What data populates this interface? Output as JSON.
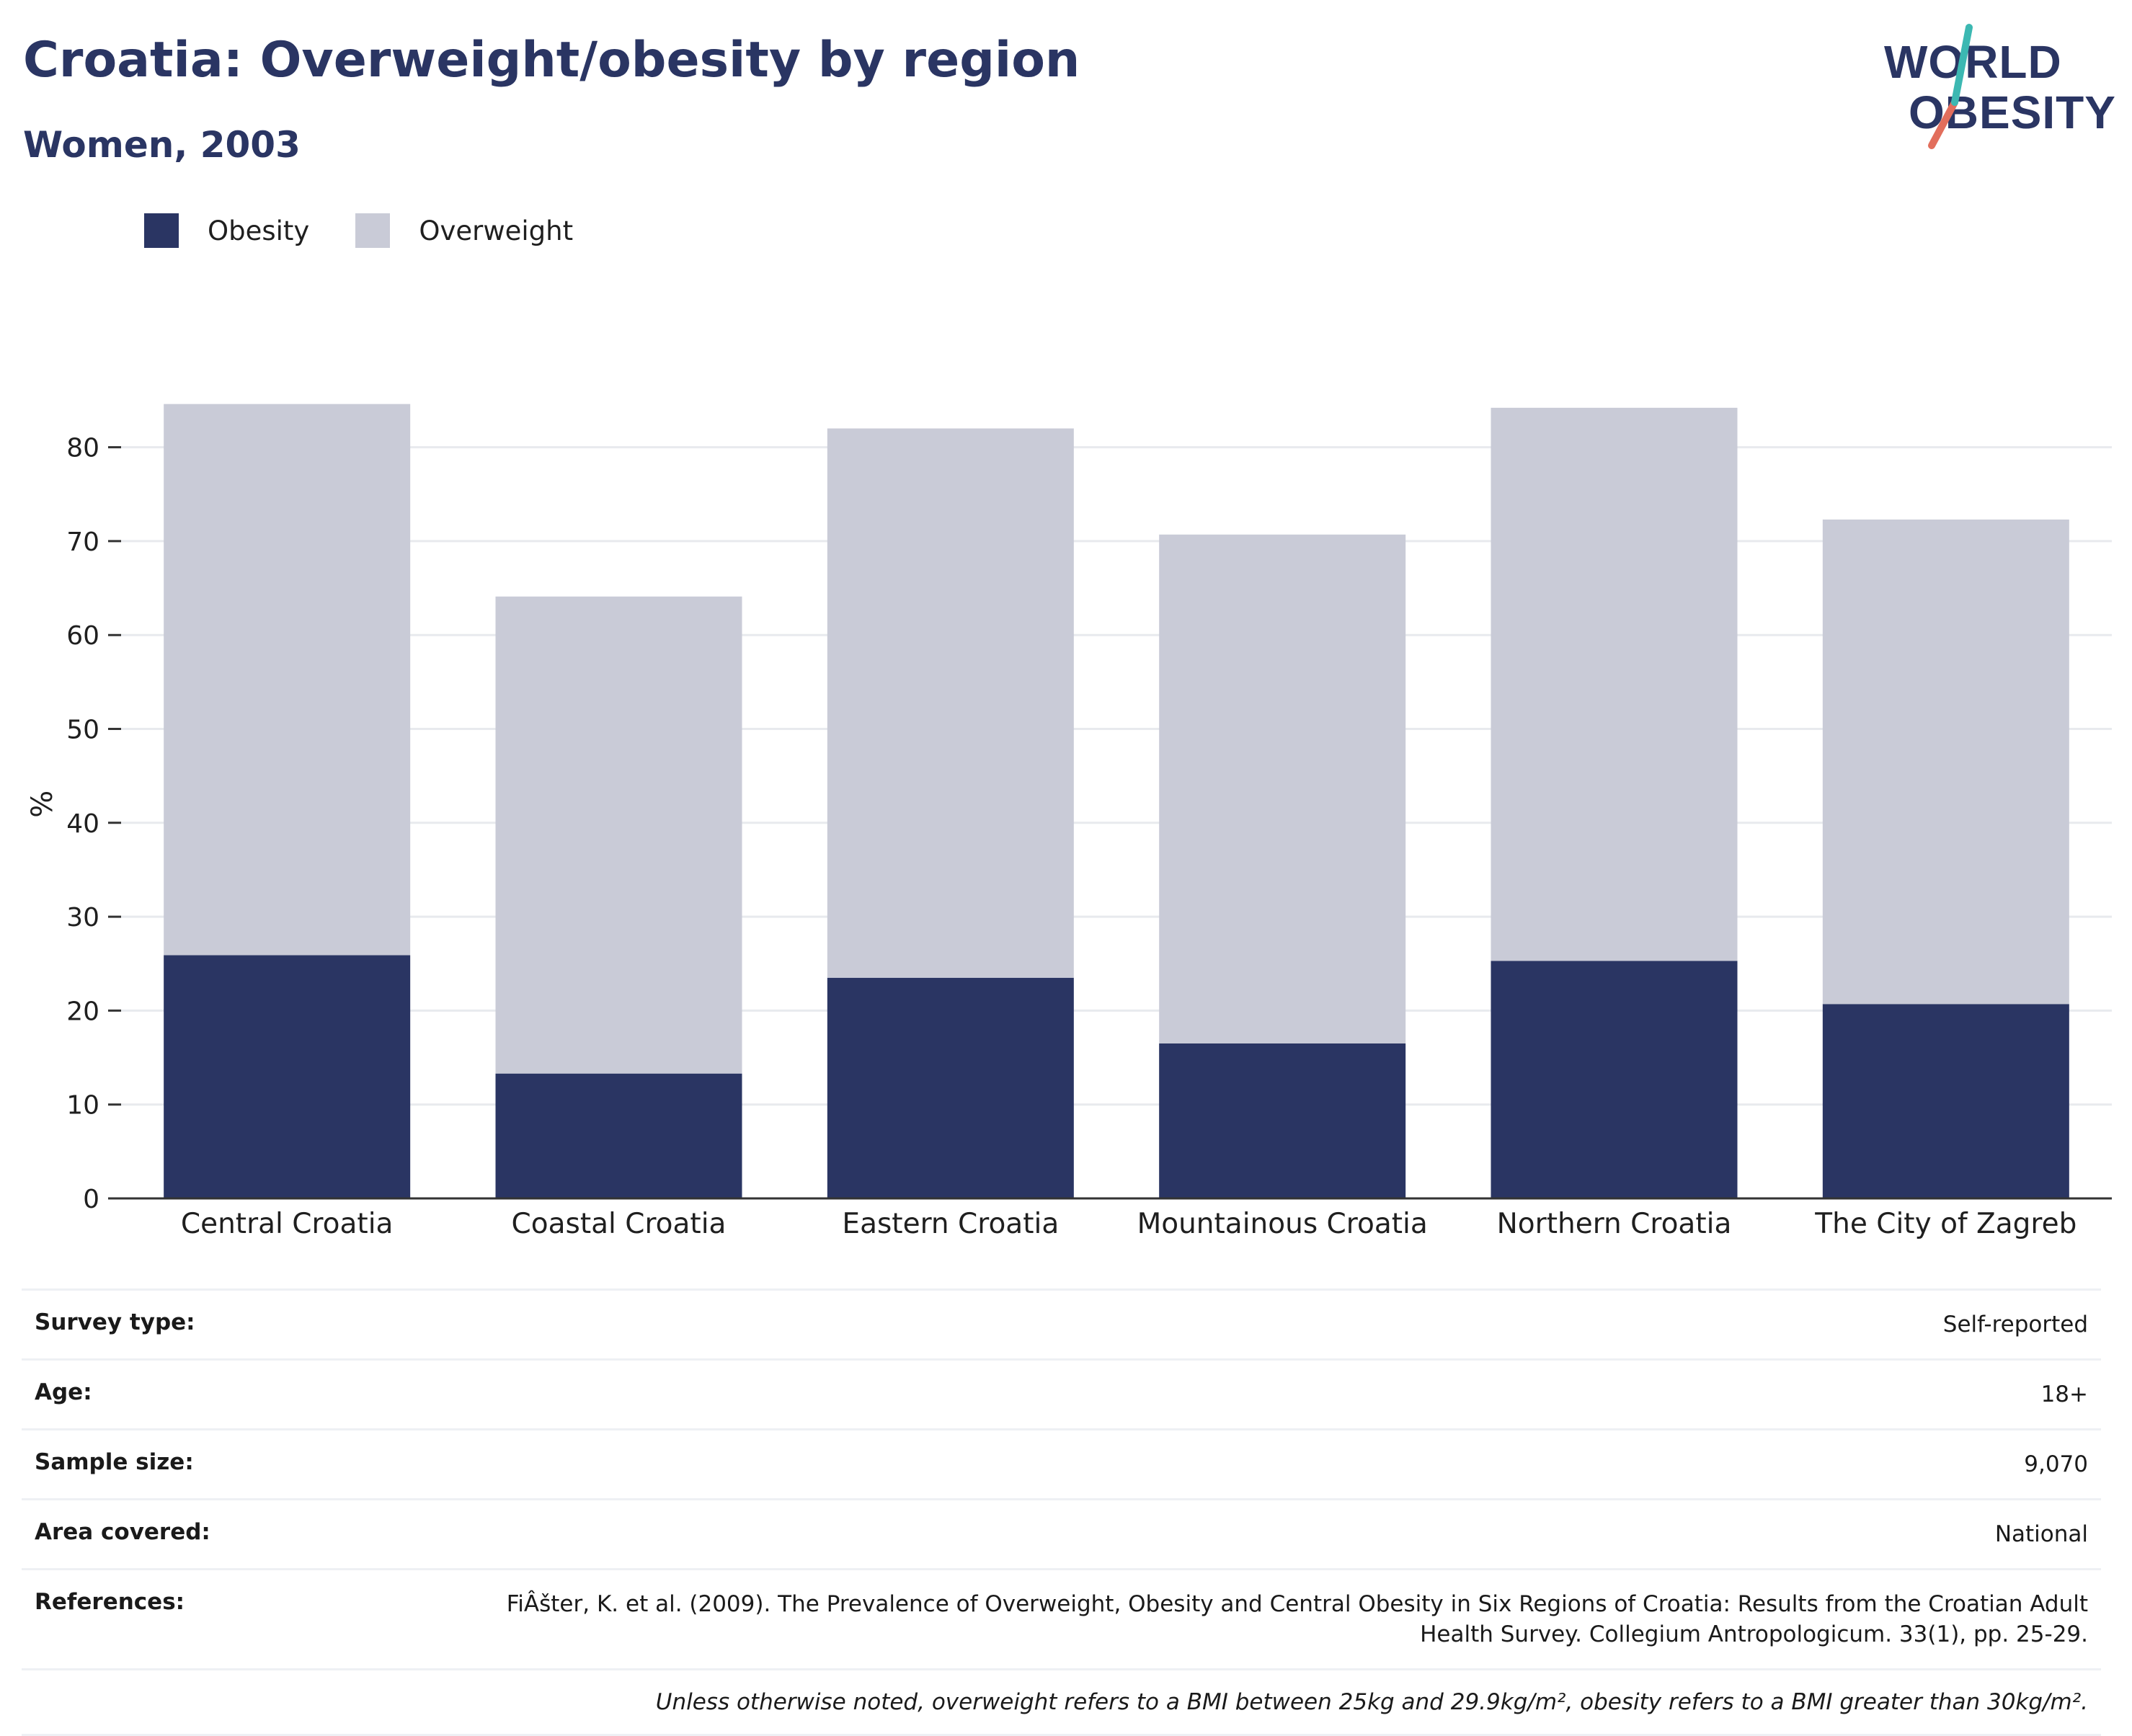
{
  "header": {
    "title": "Croatia: Overweight/obesity by region",
    "subtitle": "Women, 2003"
  },
  "logo": {
    "line1": "WORLD",
    "line2": "OBESITY"
  },
  "legend": [
    {
      "label": "Obesity",
      "color": "#2a3563"
    },
    {
      "label": "Overweight",
      "color": "#c9cbd7"
    }
  ],
  "chart_data": {
    "type": "bar",
    "stacked": true,
    "categories": [
      "Central Croatia",
      "Coastal Croatia",
      "Eastern Croatia",
      "Mountainous Croatia",
      "Northern Croatia",
      "The City of Zagreb"
    ],
    "series": [
      {
        "name": "Obesity",
        "color": "#2a3563",
        "values": [
          25.9,
          13.3,
          23.5,
          16.5,
          25.3,
          20.7
        ]
      },
      {
        "name": "Overweight",
        "color": "#c9cbd7",
        "values": [
          58.7,
          50.8,
          58.5,
          54.2,
          58.9,
          51.6
        ]
      }
    ],
    "ylabel": "%",
    "ylim": [
      0,
      85
    ],
    "yticks": [
      0,
      10,
      20,
      30,
      40,
      50,
      60,
      70,
      80
    ],
    "grid": true,
    "legend_position": "top-left"
  },
  "details": [
    {
      "key": "Survey type:",
      "value": "Self-reported"
    },
    {
      "key": "Age:",
      "value": "18+"
    },
    {
      "key": "Sample size:",
      "value": "9,070"
    },
    {
      "key": "Area covered:",
      "value": "National"
    },
    {
      "key": "References:",
      "value": "FiÂšter, K. et al. (2009). The Prevalence of Overweight, Obesity and Central Obesity in Six Regions of Croatia: Results from the Croatian Adult Health Survey. Collegium Antropologicum. 33(1), pp. 25-29."
    }
  ],
  "footnote": "Unless otherwise noted, overweight refers to a BMI between 25kg and 29.9kg/m², obesity refers to a BMI greater than 30kg/m²."
}
